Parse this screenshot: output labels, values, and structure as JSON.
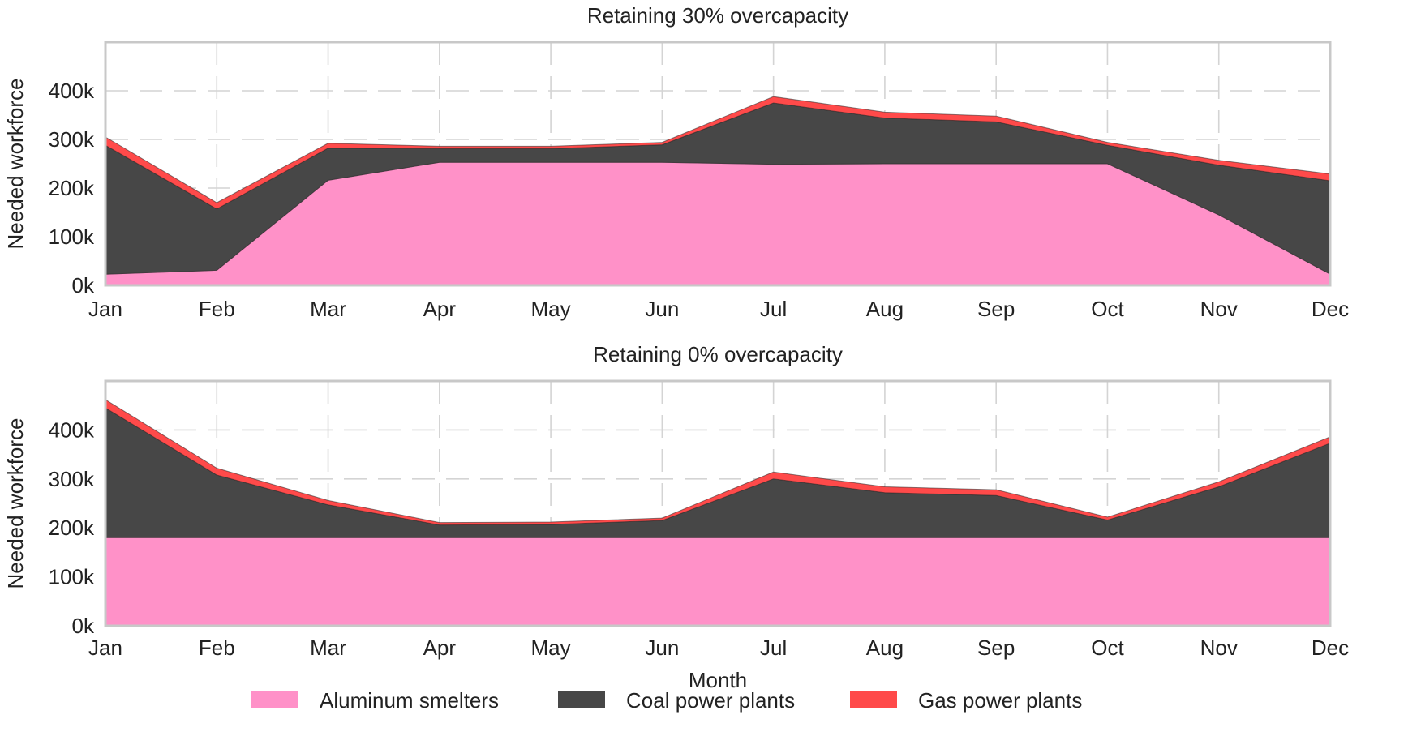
{
  "chart_data": [
    {
      "type": "area",
      "stacked": true,
      "title": "Retaining 30% overcapacity",
      "ylabel": "Needed workforce",
      "categories": [
        "Jan",
        "Feb",
        "Mar",
        "Apr",
        "May",
        "Jun",
        "Jul",
        "Aug",
        "Sep",
        "Oct",
        "Nov",
        "Dec"
      ],
      "ylim": [
        0,
        500000
      ],
      "yticks": [
        0,
        100000,
        200000,
        300000,
        400000
      ],
      "ytick_labels": [
        "0k",
        "100k",
        "200k",
        "300k",
        "400k"
      ],
      "grid": true,
      "series": [
        {
          "name": "Aluminum smelters",
          "values": [
            23000,
            31000,
            216000,
            253000,
            253000,
            253000,
            249000,
            250000,
            250000,
            250000,
            145000,
            23000
          ]
        },
        {
          "name": "Coal power plants",
          "values": [
            265000,
            126000,
            66000,
            28000,
            28000,
            36000,
            126000,
            94000,
            86000,
            38000,
            102000,
            192000
          ]
        },
        {
          "name": "Gas power plants",
          "values": [
            17000,
            13000,
            10000,
            5000,
            5000,
            5000,
            13000,
            12000,
            12000,
            6000,
            10000,
            14000
          ]
        }
      ]
    },
    {
      "type": "area",
      "stacked": true,
      "title": "Retaining 0% overcapacity",
      "ylabel": "Needed workforce",
      "xlabel": "Month",
      "categories": [
        "Jan",
        "Feb",
        "Mar",
        "Apr",
        "May",
        "Jun",
        "Jul",
        "Aug",
        "Sep",
        "Oct",
        "Nov",
        "Dec"
      ],
      "ylim": [
        0,
        500000
      ],
      "yticks": [
        0,
        100000,
        200000,
        300000,
        400000
      ],
      "ytick_labels": [
        "0k",
        "100k",
        "200k",
        "300k",
        "400k"
      ],
      "grid": true,
      "series": [
        {
          "name": "Aluminum smelters",
          "values": [
            180000,
            180000,
            180000,
            180000,
            180000,
            180000,
            180000,
            180000,
            180000,
            180000,
            180000,
            180000
          ]
        },
        {
          "name": "Coal power plants",
          "values": [
            265000,
            128000,
            67000,
            26000,
            27000,
            35000,
            120000,
            92000,
            86000,
            36000,
            104000,
            193000
          ]
        },
        {
          "name": "Gas power plants",
          "values": [
            17000,
            14000,
            9000,
            5000,
            5000,
            5000,
            14000,
            12000,
            12000,
            6000,
            10000,
            13000
          ]
        }
      ]
    }
  ],
  "legend": {
    "position": "bottom",
    "items": [
      {
        "label": "Aluminum smelters",
        "color": "#ff91c8"
      },
      {
        "label": "Coal power plants",
        "color": "#474747"
      },
      {
        "label": "Gas power plants",
        "color": "#ff4a4a"
      }
    ]
  }
}
